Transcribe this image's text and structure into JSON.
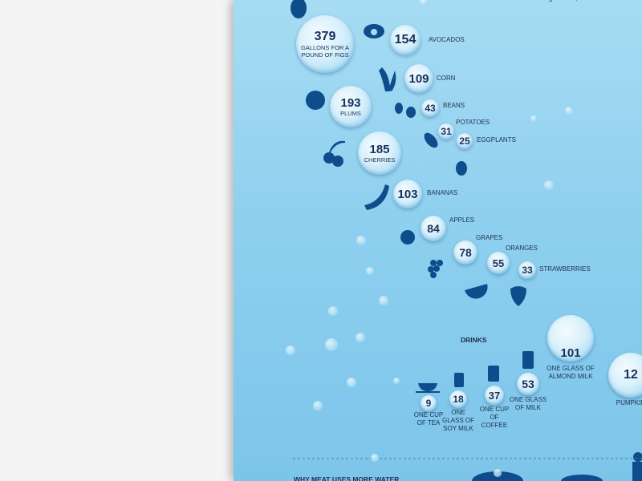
{
  "header": {
    "intro_fragment": "vegetables, and seeds to"
  },
  "foods": [
    {
      "number": 379,
      "label": "GALLONS FOR A POUND OF FIGS"
    },
    {
      "number": 154,
      "label": "AVOCADOS"
    },
    {
      "number": 109,
      "label": "CORN"
    },
    {
      "number": 193,
      "label": "PLUMS"
    },
    {
      "number": 43,
      "label": "BEANS"
    },
    {
      "number": 31,
      "label": "POTATOES"
    },
    {
      "number": 25,
      "label": "EGGPLANTS"
    },
    {
      "number": 185,
      "label": "CHERRIES"
    },
    {
      "number": 103,
      "label": "BANANAS"
    },
    {
      "number": 84,
      "label": "APPLES"
    },
    {
      "number": 78,
      "label": "GRAPES"
    },
    {
      "number": 55,
      "label": "ORANGES"
    },
    {
      "number": 33,
      "label": "STRAWBERRIES"
    }
  ],
  "drinks": {
    "title": "DRINKS",
    "items": [
      {
        "number": 9,
        "label": "ONE CUP OF TEA"
      },
      {
        "number": 18,
        "label": "ONE GLASS OF SOY MILK"
      },
      {
        "number": 37,
        "label": "ONE CUP OF COFFEE"
      },
      {
        "number": 53,
        "label": "ONE GLASS OF MILK"
      },
      {
        "number": 101,
        "label": "ONE GLASS OF ALMOND MILK"
      },
      {
        "number": 12,
        "label": "PUMPKIN"
      }
    ]
  },
  "section": {
    "title": "WHY MEAT USES MORE WATER"
  }
}
